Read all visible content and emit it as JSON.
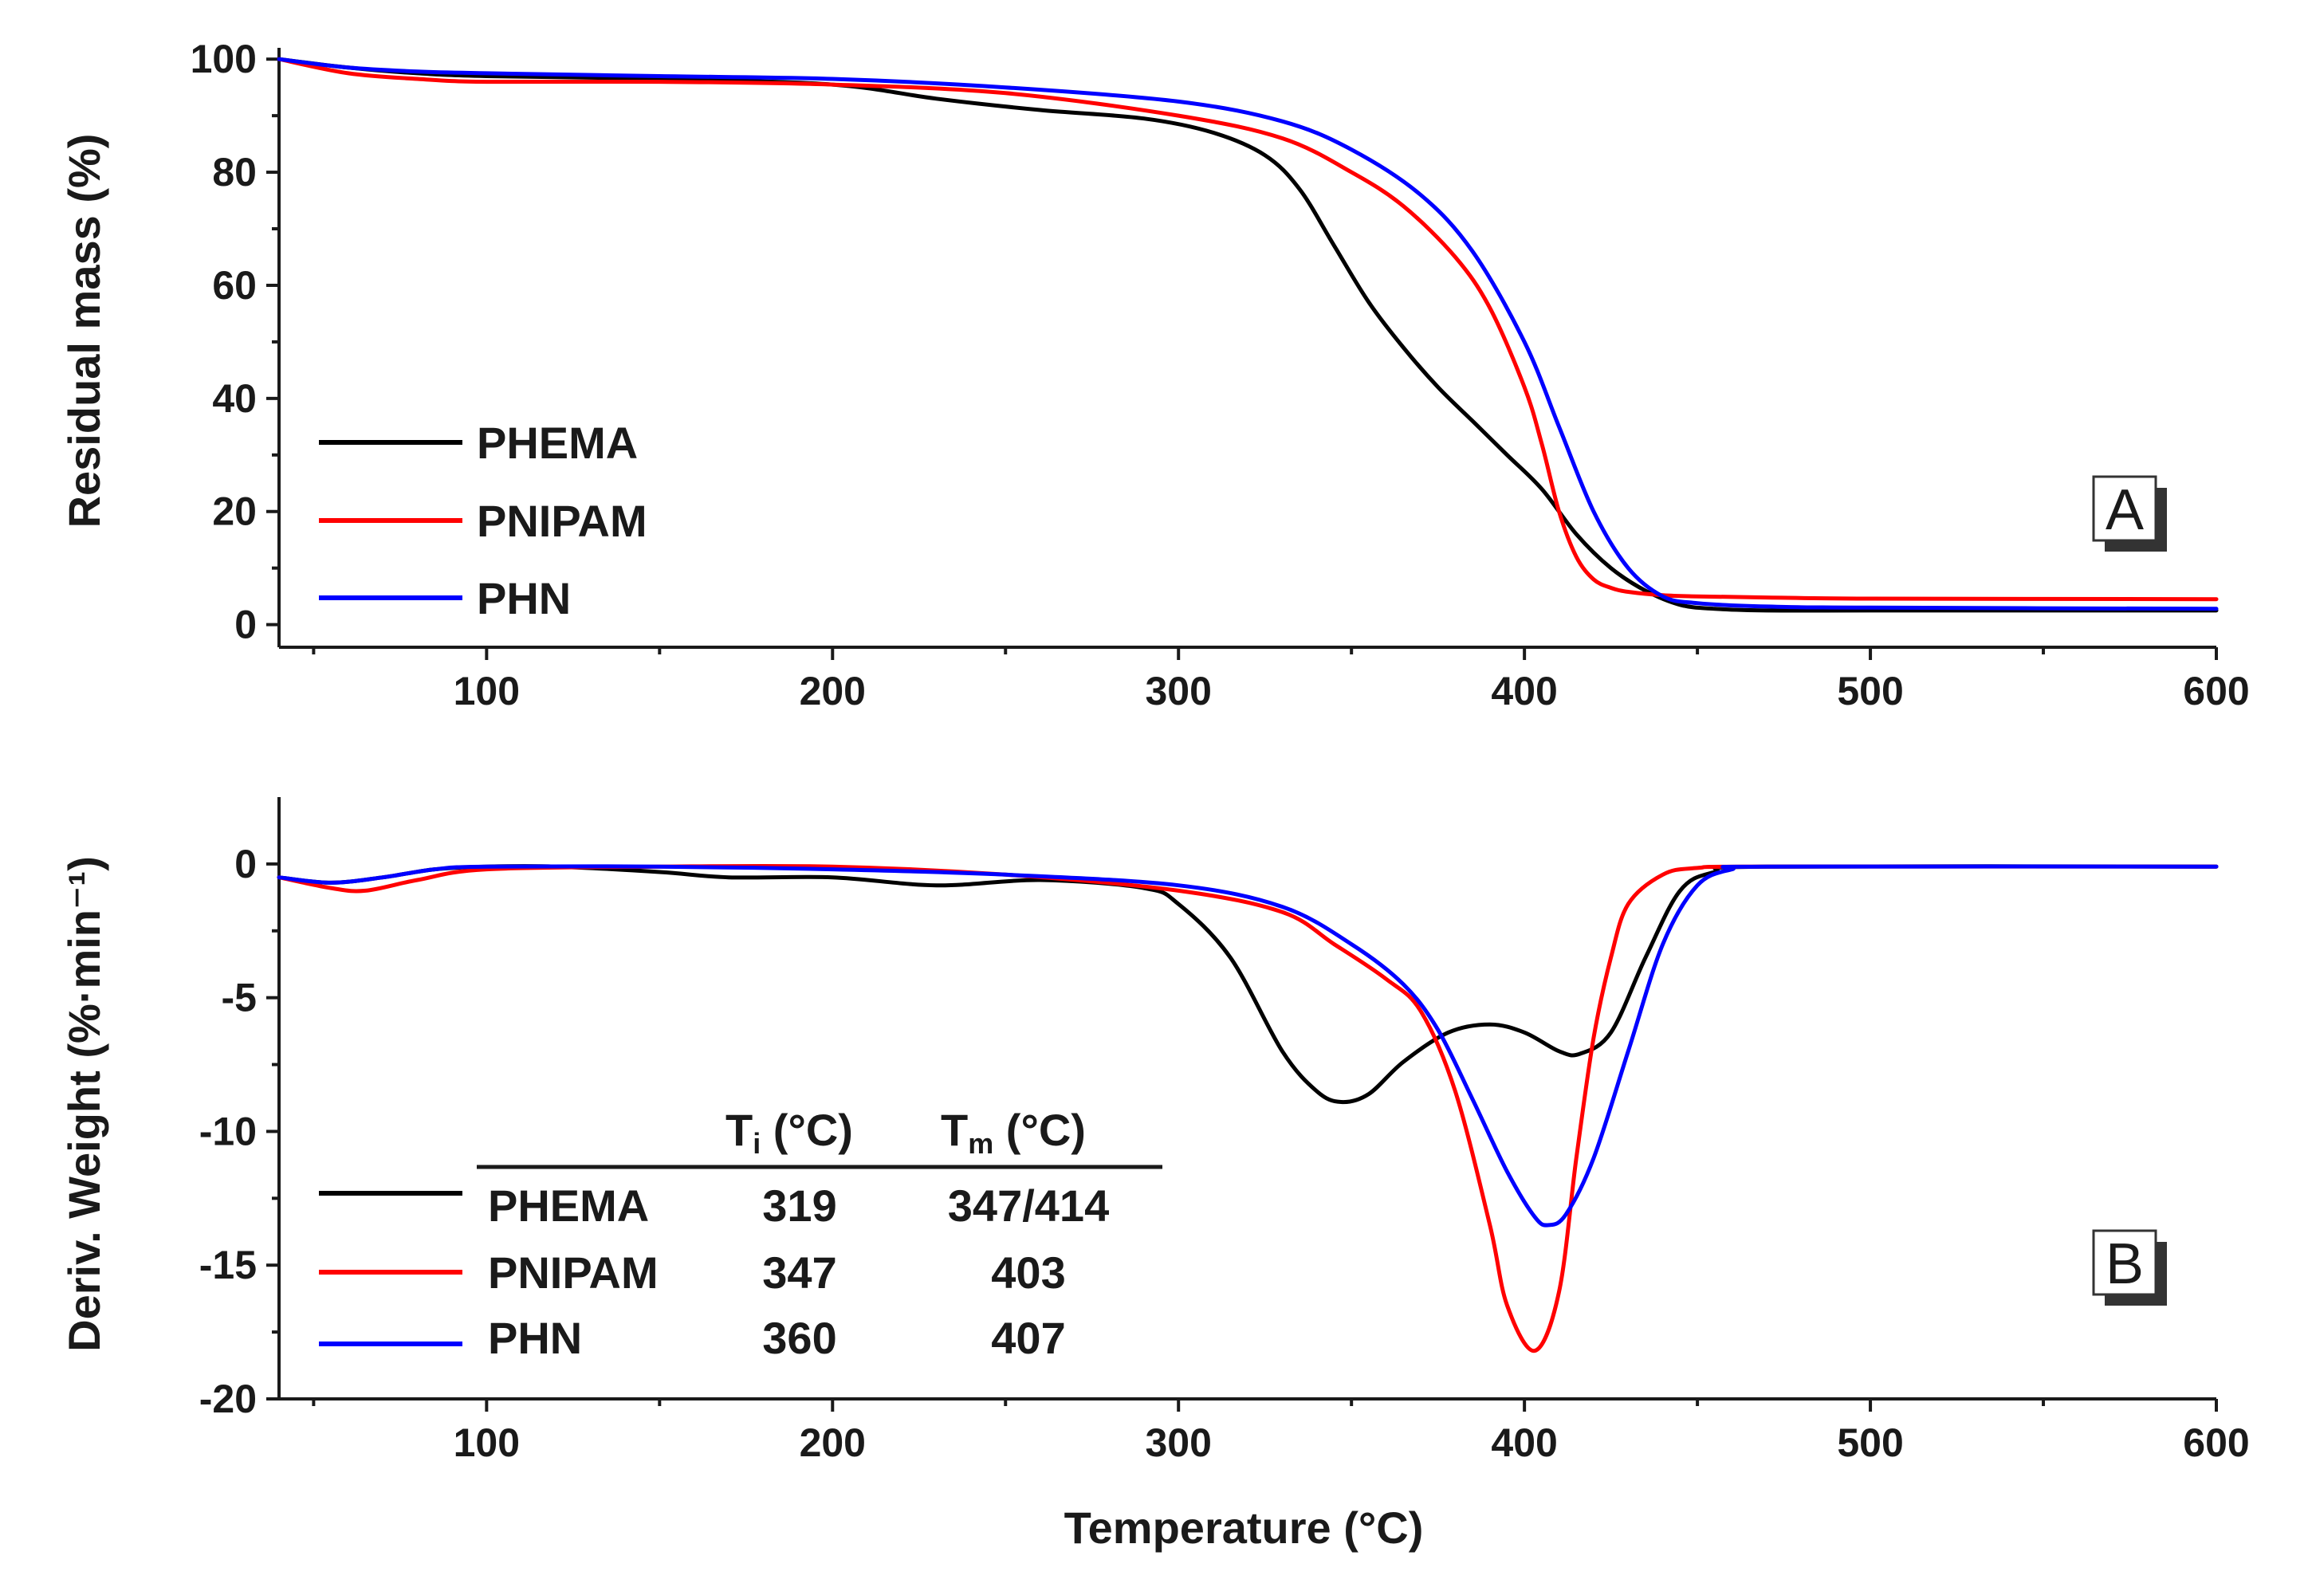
{
  "colors": {
    "PHEMA": "#000000",
    "PNIPAM": "#ff0000",
    "PHN": "#0000ff"
  },
  "panel_labels": {
    "top": "A",
    "bottom": "B"
  },
  "legend_top": [
    "PHEMA",
    "PNIPAM",
    "PHN"
  ],
  "table": {
    "header_ti_main": "T",
    "header_ti_sub": "i",
    "header_ti_unit": " (°C)",
    "header_tm_main": "T",
    "header_tm_sub": "m",
    "header_tm_unit": " (°C)",
    "rows": [
      {
        "name": "PHEMA",
        "ti": "319",
        "tm": "347/414"
      },
      {
        "name": "PNIPAM",
        "ti": "347",
        "tm": "403"
      },
      {
        "name": "PHN",
        "ti": "360",
        "tm": "407"
      }
    ]
  },
  "chart_data": [
    {
      "type": "line",
      "panel": "A",
      "title": "",
      "xlabel": "",
      "ylabel": "Residual mass (%)",
      "xlim": [
        40,
        600
      ],
      "ylim": [
        -4,
        102
      ],
      "xticks": [
        100,
        200,
        300,
        400,
        500,
        600
      ],
      "yticks": [
        0,
        20,
        40,
        60,
        80,
        100
      ],
      "series": [
        {
          "name": "PHEMA",
          "x": [
            40,
            60,
            80,
            100,
            150,
            200,
            230,
            260,
            290,
            310,
            325,
            335,
            345,
            355,
            365,
            375,
            385,
            395,
            405,
            415,
            425,
            435,
            445,
            455,
            470,
            500,
            600
          ],
          "y": [
            100,
            98.5,
            97.5,
            97,
            96.5,
            95.5,
            93,
            91,
            89.5,
            87,
            83,
            77,
            67,
            57,
            49,
            42,
            36,
            30,
            24,
            16,
            10,
            6,
            3.5,
            2.8,
            2.5,
            2.5,
            2.5
          ]
        },
        {
          "name": "PNIPAM",
          "x": [
            40,
            60,
            80,
            100,
            150,
            200,
            250,
            300,
            330,
            350,
            365,
            380,
            390,
            400,
            405,
            410,
            415,
            420,
            425,
            430,
            440,
            450,
            470,
            500,
            600
          ],
          "y": [
            100,
            97.5,
            96.5,
            96,
            96,
            95.5,
            94,
            90,
            86,
            80,
            74,
            65,
            56,
            42,
            32,
            20,
            12,
            8,
            6.5,
            5.8,
            5.2,
            5,
            4.8,
            4.6,
            4.5
          ]
        },
        {
          "name": "PHN",
          "x": [
            40,
            60,
            80,
            100,
            150,
            200,
            250,
            300,
            330,
            350,
            370,
            385,
            400,
            410,
            420,
            430,
            440,
            450,
            470,
            500,
            600
          ],
          "y": [
            100,
            98.5,
            97.8,
            97.5,
            97,
            96.5,
            95,
            92.5,
            89,
            84,
            76,
            66,
            50,
            35,
            20,
            10,
            5,
            3.8,
            3.2,
            3,
            2.8
          ]
        }
      ]
    },
    {
      "type": "line",
      "panel": "B",
      "title": "",
      "xlabel": "Temperature (°C)",
      "ylabel": "Deriv. Weight (%·min⁻¹)",
      "xlim": [
        40,
        600
      ],
      "ylim": [
        -20,
        2.5
      ],
      "xticks": [
        100,
        200,
        300,
        400,
        500,
        600
      ],
      "yticks": [
        0,
        -5,
        -10,
        -15,
        -20
      ],
      "series": [
        {
          "name": "PHEMA",
          "x": [
            40,
            55,
            70,
            85,
            100,
            120,
            150,
            170,
            200,
            230,
            260,
            290,
            300,
            315,
            330,
            340,
            347,
            355,
            365,
            378,
            390,
            400,
            410,
            416,
            425,
            435,
            445,
            455,
            470,
            600
          ],
          "y": [
            -0.5,
            -0.7,
            -0.5,
            -0.2,
            -0.1,
            -0.1,
            -0.3,
            -0.5,
            -0.5,
            -0.8,
            -0.6,
            -0.9,
            -1.5,
            -3.5,
            -7,
            -8.5,
            -8.9,
            -8.6,
            -7.4,
            -6.3,
            -6.0,
            -6.3,
            -7,
            -7.1,
            -6.3,
            -3.5,
            -1,
            -0.3,
            -0.1,
            -0.1
          ]
        },
        {
          "name": "PNIPAM",
          "x": [
            40,
            55,
            65,
            80,
            100,
            150,
            200,
            250,
            300,
            330,
            345,
            360,
            370,
            380,
            390,
            395,
            403,
            410,
            415,
            420,
            425,
            430,
            440,
            450,
            470,
            600
          ],
          "y": [
            -0.5,
            -0.9,
            -1.0,
            -0.6,
            -0.2,
            -0.1,
            -0.1,
            -0.4,
            -1.0,
            -1.8,
            -3.0,
            -4.3,
            -5.5,
            -8.5,
            -13.5,
            -16.5,
            -18.2,
            -16,
            -11,
            -6.5,
            -3.5,
            -1.5,
            -0.4,
            -0.15,
            -0.1,
            -0.1
          ]
        },
        {
          "name": "PHN",
          "x": [
            40,
            55,
            70,
            85,
            100,
            150,
            200,
            250,
            300,
            330,
            350,
            365,
            375,
            385,
            395,
            403,
            407,
            412,
            420,
            430,
            440,
            450,
            460,
            470,
            600
          ],
          "y": [
            -0.5,
            -0.7,
            -0.5,
            -0.2,
            -0.1,
            -0.1,
            -0.2,
            -0.4,
            -0.8,
            -1.6,
            -3.0,
            -4.5,
            -6.2,
            -8.8,
            -11.5,
            -13.2,
            -13.5,
            -13.1,
            -11,
            -7,
            -3,
            -0.8,
            -0.2,
            -0.1,
            -0.1
          ]
        }
      ]
    }
  ]
}
